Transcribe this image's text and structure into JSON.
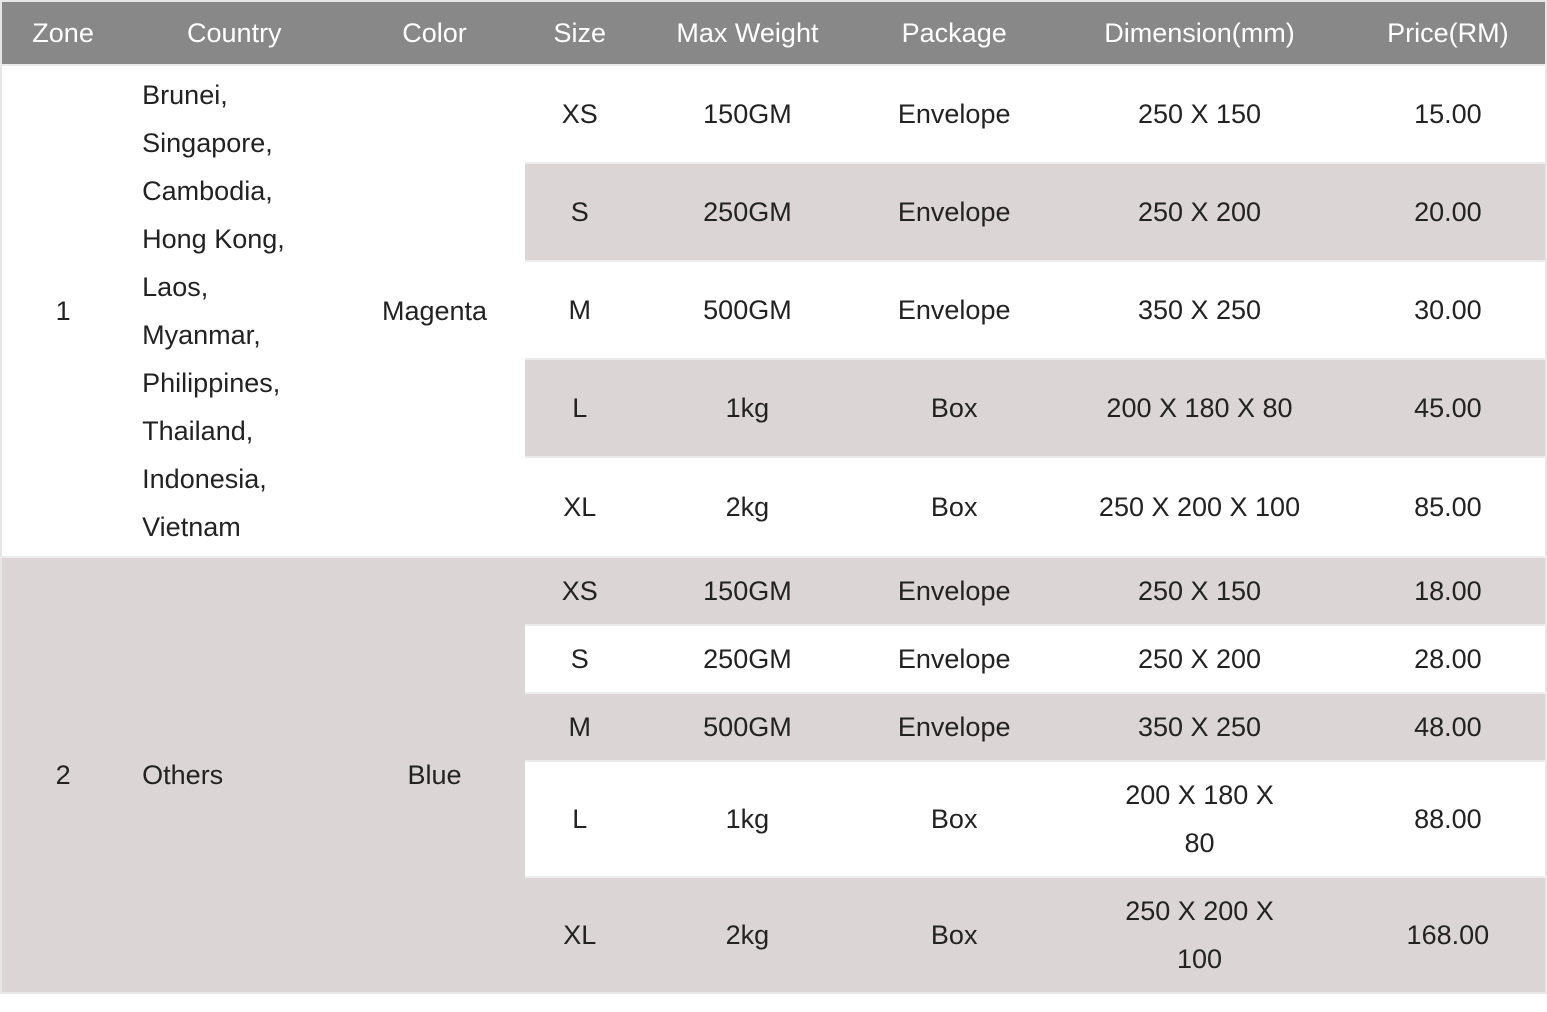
{
  "headers": [
    "Zone",
    "Country",
    "Color",
    "Size",
    "Max Weight",
    "Package",
    "Dimension(mm)",
    "Price(RM)"
  ],
  "zones": [
    {
      "zone": "1",
      "countries": [
        "Brunei,",
        "Singapore,",
        "Cambodia,",
        "Hong Kong,",
        "Laos,",
        "Myanmar,",
        "Philippines,",
        "Thailand,",
        "Indonesia,",
        "Vietnam"
      ],
      "color": "Magenta",
      "rows": [
        {
          "size": "XS",
          "weight": "150GM",
          "package": "Envelope",
          "dimension": "250 X 150",
          "price": "15.00"
        },
        {
          "size": "S",
          "weight": "250GM",
          "package": "Envelope",
          "dimension": "250 X 200",
          "price": "20.00"
        },
        {
          "size": "M",
          "weight": "500GM",
          "package": "Envelope",
          "dimension": "350 X 250",
          "price": "30.00"
        },
        {
          "size": "L",
          "weight": "1kg",
          "package": "Box",
          "dimension": "200 X 180 X 80",
          "price": "45.00"
        },
        {
          "size": "XL",
          "weight": "2kg",
          "package": "Box",
          "dimension": "250 X 200 X 100",
          "price": "85.00"
        }
      ]
    },
    {
      "zone": "2",
      "countries": [
        "Others"
      ],
      "color": "Blue",
      "rows": [
        {
          "size": "XS",
          "weight": "150GM",
          "package": "Envelope",
          "dimension": "250 X 150",
          "price": "18.00"
        },
        {
          "size": "S",
          "weight": "250GM",
          "package": "Envelope",
          "dimension": "250 X 200",
          "price": "28.00"
        },
        {
          "size": "M",
          "weight": "500GM",
          "package": "Envelope",
          "dimension": "350 X 250",
          "price": "48.00"
        },
        {
          "size": "L",
          "weight": "1kg",
          "package": "Box",
          "dimension": "200 X 180 X 80",
          "price": "88.00"
        },
        {
          "size": "XL",
          "weight": "2kg",
          "package": "Box",
          "dimension": "250 X 200 X 100",
          "price": "168.00"
        }
      ]
    }
  ],
  "colors": {
    "header_bg": "#888888",
    "row_alt": "#dbd5d5"
  }
}
